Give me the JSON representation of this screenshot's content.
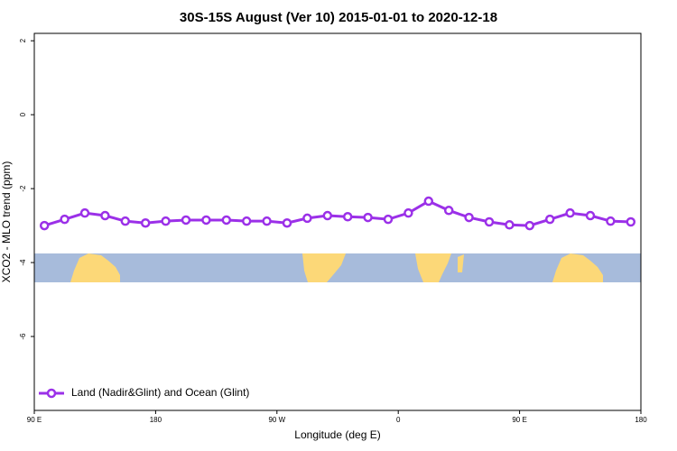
{
  "chart_data": {
    "type": "line",
    "title": "30S-15S August (Ver 10)   2015-01-01 to 2020-12-18",
    "x_label": "Longitude (deg E)",
    "y_label": "XCO2 - MLO trend (ppm)",
    "x": [
      97.5,
      112.5,
      127.5,
      142.5,
      157.5,
      172.5,
      187.5,
      202.5,
      217.5,
      232.5,
      247.5,
      262.5,
      277.5,
      292.5,
      307.5,
      322.5,
      337.5,
      352.5,
      367.5,
      382.5,
      397.5,
      412.5,
      427.5,
      442.5,
      457.5,
      472.5,
      487.5,
      502.5,
      517.5,
      532.5
    ],
    "series": [
      {
        "name": "Land (Nadir&Glint) and Ocean (Glint)",
        "color": "#9b30e8",
        "values": [
          -3.0,
          -2.83,
          -2.66,
          -2.73,
          -2.88,
          -2.93,
          -2.88,
          -2.85,
          -2.85,
          -2.85,
          -2.88,
          -2.88,
          -2.93,
          -2.8,
          -2.73,
          -2.76,
          -2.78,
          -2.83,
          -2.66,
          -2.34,
          -2.59,
          -2.78,
          -2.9,
          -2.98,
          -3.0,
          -2.83,
          -2.66,
          -2.73,
          -2.88,
          -2.9
        ]
      }
    ],
    "xlim": [
      90,
      540
    ],
    "xticks": [
      {
        "value": 90,
        "label": "90 E"
      },
      180,
      {
        "value": 270,
        "label": "90 W"
      },
      {
        "value": 360,
        "label": "0"
      },
      {
        "value": 450,
        "label": "90 E"
      },
      {
        "value": 540,
        "label": "180"
      }
    ],
    "ylim": [
      -8,
      2.2
    ],
    "yticks": [
      2,
      0,
      -2,
      -4,
      -6
    ],
    "legend": "bottom-left"
  }
}
